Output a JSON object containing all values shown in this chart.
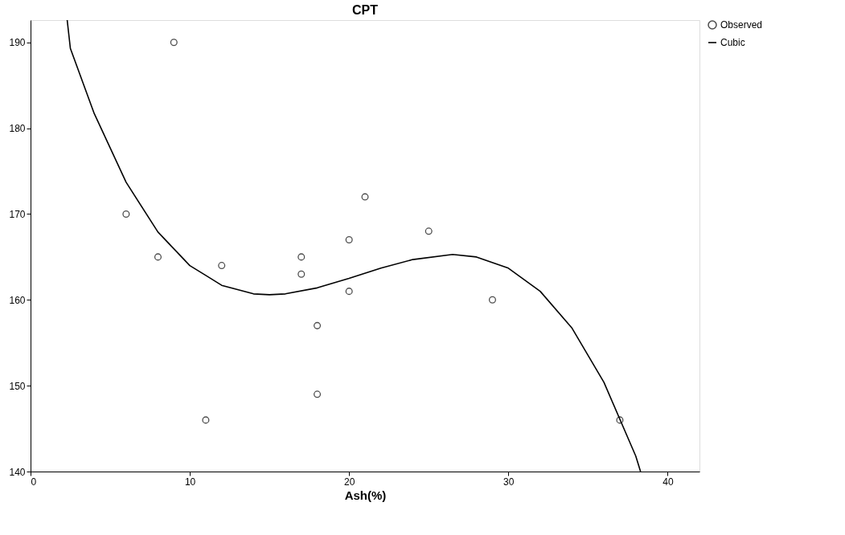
{
  "chart_data": {
    "type": "scatter",
    "title": "CPT",
    "xlabel": "Ash(%)",
    "xlim": [
      0,
      42
    ],
    "ylim": [
      140,
      192.6
    ],
    "xticks": [
      0,
      10,
      20,
      30,
      40
    ],
    "yticks": [
      140,
      150,
      160,
      170,
      180,
      190
    ],
    "grid": false,
    "legend": "top right",
    "series": [
      {
        "name": "Observed",
        "marker": "circle",
        "color": "#000000",
        "x": [
          6,
          8,
          9,
          11,
          12,
          17,
          17,
          18,
          18,
          20,
          20,
          21,
          25,
          29,
          37
        ],
        "values": [
          170,
          165,
          190,
          146,
          164,
          165,
          163,
          157,
          149,
          167,
          161,
          172,
          168,
          160,
          146
        ]
      },
      {
        "name": "Cubic",
        "type": "line",
        "marker": "none",
        "color": "#000000",
        "line_style": "solid",
        "x": [
          2.3,
          2.5,
          4,
          6,
          8,
          10,
          12,
          14,
          15,
          16,
          18,
          20,
          22,
          24,
          26.5,
          28,
          30,
          32,
          34,
          36,
          38,
          38.3
        ],
        "values": [
          192.6,
          189.3,
          181.7,
          173.7,
          167.9,
          164.0,
          161.7,
          160.7,
          160.6,
          160.7,
          161.4,
          162.5,
          163.7,
          164.7,
          165.3,
          165.0,
          163.7,
          161.0,
          156.7,
          150.4,
          141.8,
          140
        ]
      }
    ]
  }
}
